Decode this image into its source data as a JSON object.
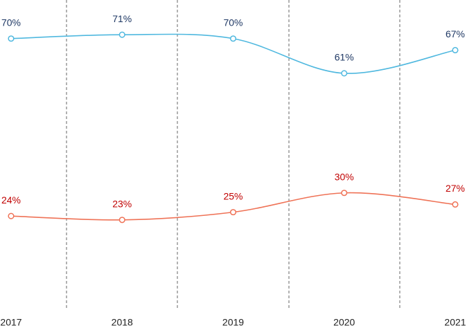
{
  "chart_data": {
    "type": "line",
    "categories": [
      "2017",
      "2018",
      "2019",
      "2020",
      "2021"
    ],
    "series": [
      {
        "color": "#4fb8df",
        "label_color": "#1f3864",
        "values": [
          70,
          71,
          70,
          61,
          67
        ],
        "value_labels": [
          "70%",
          "71%",
          "70%",
          "61%",
          "67%"
        ]
      },
      {
        "color": "#ef7256",
        "label_color": "#c00000",
        "values": [
          24,
          23,
          25,
          30,
          27
        ],
        "value_labels": [
          "24%",
          "23%",
          "25%",
          "30%",
          "27%"
        ]
      }
    ],
    "ylim": [
      0,
      80
    ]
  }
}
